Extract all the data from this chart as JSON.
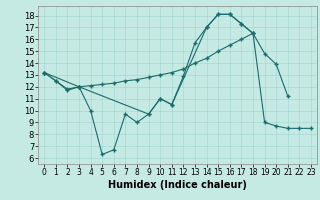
{
  "xlabel": "Humidex (Indice chaleur)",
  "bg_color": "#c5eae4",
  "line_color": "#1a6b6b",
  "grid_color": "#a8d8d2",
  "xlim": [
    -0.5,
    23.5
  ],
  "ylim": [
    5.5,
    18.8
  ],
  "yticks": [
    6,
    7,
    8,
    9,
    10,
    11,
    12,
    13,
    14,
    15,
    16,
    17,
    18
  ],
  "xticks": [
    0,
    1,
    2,
    3,
    4,
    5,
    6,
    7,
    8,
    9,
    10,
    11,
    12,
    13,
    14,
    15,
    16,
    17,
    18,
    19,
    20,
    21,
    22,
    23
  ],
  "series": [
    {
      "x": [
        0,
        1,
        2,
        3,
        4,
        5,
        6,
        7,
        8,
        9,
        10,
        11,
        12,
        13,
        14,
        15,
        16,
        17,
        18,
        19,
        20,
        21
      ],
      "y": [
        13.2,
        12.5,
        11.7,
        12.0,
        10.0,
        6.3,
        6.7,
        9.7,
        9.0,
        9.7,
        11.0,
        10.5,
        12.9,
        15.7,
        17.0,
        18.1,
        18.1,
        17.3,
        16.5,
        14.8,
        13.9,
        11.2
      ]
    },
    {
      "x": [
        0,
        1,
        2,
        3,
        4,
        5,
        6,
        7,
        8,
        9,
        10,
        11,
        12,
        13,
        14,
        15,
        16,
        17,
        18
      ],
      "y": [
        13.2,
        12.5,
        11.8,
        12.0,
        12.1,
        12.2,
        12.3,
        12.5,
        12.6,
        12.8,
        13.0,
        13.2,
        13.5,
        14.0,
        14.4,
        15.0,
        15.5,
        16.0,
        16.5
      ]
    },
    {
      "x": [
        0,
        3,
        9,
        10,
        11,
        14,
        15,
        16,
        17,
        18,
        19,
        20,
        21,
        22,
        23
      ],
      "y": [
        13.2,
        12.0,
        9.7,
        11.0,
        10.5,
        17.0,
        18.1,
        18.1,
        17.3,
        16.5,
        9.0,
        8.7,
        8.5,
        8.5,
        8.5
      ]
    }
  ]
}
